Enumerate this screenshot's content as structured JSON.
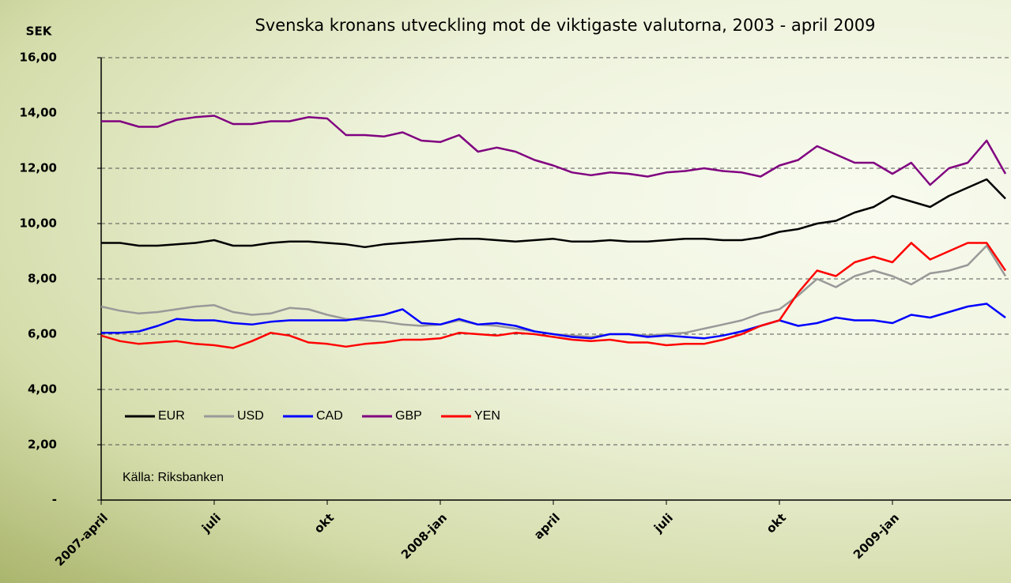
{
  "chart_data": {
    "type": "line",
    "title": "Svenska kronans utveckling mot de viktigaste valutorna, 2003 - april 2009",
    "y_label": "SEK",
    "source": "Källa: Riksbanken",
    "categories": [
      "2007-april",
      null,
      null,
      null,
      null,
      null,
      "juli",
      null,
      null,
      null,
      null,
      null,
      "okt",
      null,
      null,
      null,
      null,
      null,
      "2008-jan",
      null,
      null,
      null,
      null,
      null,
      "april",
      null,
      null,
      null,
      null,
      null,
      "juli",
      null,
      null,
      null,
      null,
      null,
      "okt",
      null,
      null,
      null,
      null,
      null,
      "2009-jan",
      null,
      null,
      null,
      null,
      null,
      null
    ],
    "series": [
      {
        "name": "EUR",
        "color": "#000000",
        "values": [
          9.3,
          9.3,
          9.2,
          9.2,
          9.25,
          9.3,
          9.4,
          9.2,
          9.2,
          9.3,
          9.35,
          9.35,
          9.3,
          9.25,
          9.15,
          9.25,
          9.3,
          9.35,
          9.4,
          9.45,
          9.45,
          9.4,
          9.35,
          9.4,
          9.45,
          9.35,
          9.35,
          9.4,
          9.35,
          9.35,
          9.4,
          9.45,
          9.45,
          9.4,
          9.4,
          9.5,
          9.7,
          9.8,
          10.0,
          10.1,
          10.4,
          10.6,
          11.0,
          10.8,
          10.6,
          11.0,
          11.3,
          11.6,
          10.9
        ]
      },
      {
        "name": "USD",
        "color": "#999999",
        "values": [
          7.0,
          6.85,
          6.75,
          6.8,
          6.9,
          7.0,
          7.05,
          6.8,
          6.7,
          6.75,
          6.95,
          6.9,
          6.7,
          6.55,
          6.5,
          6.45,
          6.35,
          6.3,
          6.35,
          6.5,
          6.35,
          6.3,
          6.2,
          6.1,
          6.0,
          5.95,
          5.9,
          6.0,
          6.0,
          5.95,
          6.0,
          6.05,
          6.2,
          6.35,
          6.5,
          6.75,
          6.9,
          7.4,
          8.0,
          7.7,
          8.1,
          8.3,
          8.1,
          7.8,
          8.2,
          8.3,
          8.5,
          9.2,
          8.1
        ]
      },
      {
        "name": "CAD",
        "color": "#0000ff",
        "values": [
          6.05,
          6.05,
          6.1,
          6.3,
          6.55,
          6.5,
          6.5,
          6.4,
          6.35,
          6.45,
          6.5,
          6.5,
          6.5,
          6.5,
          6.6,
          6.7,
          6.9,
          6.4,
          6.35,
          6.55,
          6.35,
          6.4,
          6.3,
          6.1,
          6.0,
          5.9,
          5.85,
          6.0,
          6.0,
          5.9,
          5.95,
          5.9,
          5.85,
          5.95,
          6.1,
          6.3,
          6.5,
          6.3,
          6.4,
          6.6,
          6.5,
          6.5,
          6.4,
          6.7,
          6.6,
          6.8,
          7.0,
          7.1,
          6.6
        ]
      },
      {
        "name": "GBP",
        "color": "#800080",
        "values": [
          13.7,
          13.7,
          13.5,
          13.5,
          13.75,
          13.85,
          13.9,
          13.6,
          13.6,
          13.7,
          13.7,
          13.85,
          13.8,
          13.2,
          13.2,
          13.15,
          13.3,
          13.0,
          12.95,
          13.2,
          12.6,
          12.75,
          12.6,
          12.3,
          12.1,
          11.85,
          11.75,
          11.85,
          11.8,
          11.7,
          11.85,
          11.9,
          12.0,
          11.9,
          11.85,
          11.7,
          12.1,
          12.3,
          12.8,
          12.5,
          12.2,
          12.2,
          11.8,
          12.2,
          11.4,
          12.0,
          12.2,
          13.0,
          11.8
        ]
      },
      {
        "name": "YEN",
        "color": "#ff0000",
        "values": [
          5.95,
          5.75,
          5.65,
          5.7,
          5.75,
          5.65,
          5.6,
          5.5,
          5.75,
          6.05,
          5.95,
          5.7,
          5.65,
          5.55,
          5.65,
          5.7,
          5.8,
          5.8,
          5.85,
          6.05,
          6.0,
          5.95,
          6.05,
          6.0,
          5.9,
          5.8,
          5.75,
          5.8,
          5.7,
          5.7,
          5.6,
          5.65,
          5.65,
          5.8,
          6.0,
          6.3,
          6.5,
          7.5,
          8.3,
          8.1,
          8.6,
          8.8,
          8.6,
          9.3,
          8.7,
          9.0,
          9.3,
          9.3,
          8.3
        ]
      }
    ],
    "ylim": [
      0,
      16
    ],
    "yticks": [
      {
        "value": 0,
        "label": "-"
      },
      {
        "value": 2,
        "label": "2,00"
      },
      {
        "value": 4,
        "label": "4,00"
      },
      {
        "value": 6,
        "label": "6,00"
      },
      {
        "value": 8,
        "label": "8,00"
      },
      {
        "value": 10,
        "label": "10,00"
      },
      {
        "value": 12,
        "label": "12,00"
      },
      {
        "value": 14,
        "label": "14,00"
      },
      {
        "value": 16,
        "label": "16,00"
      }
    ],
    "grid": true
  }
}
